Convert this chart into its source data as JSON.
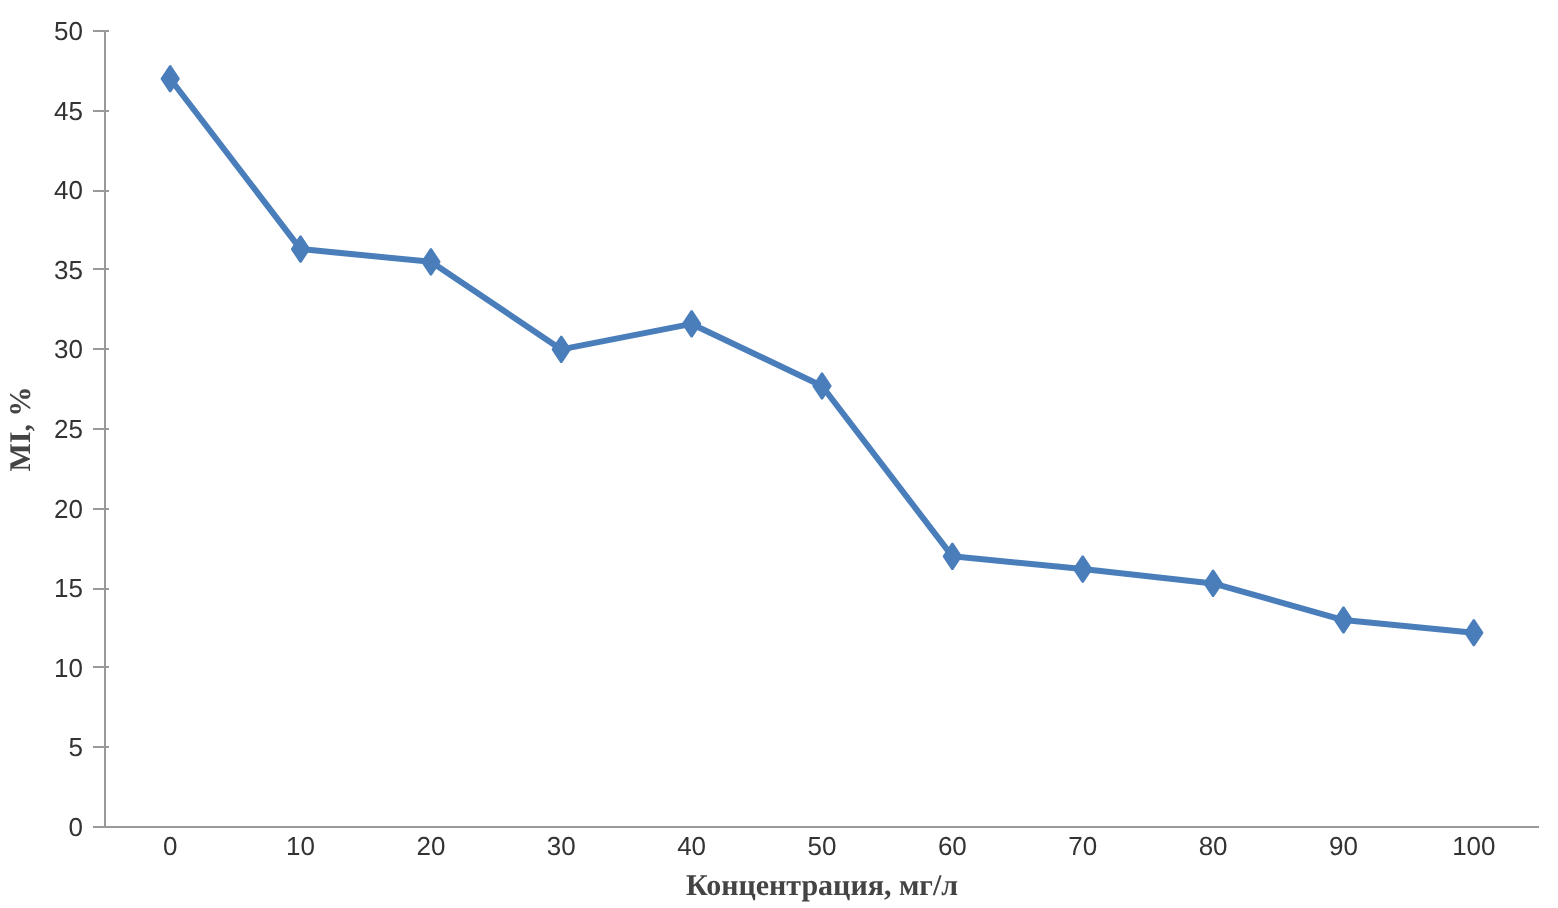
{
  "chart_data": {
    "type": "line",
    "xlabel": "Концентрация, мг/л",
    "ylabel": "MI, %",
    "categories": [
      "0",
      "10",
      "20",
      "30",
      "40",
      "50",
      "60",
      "70",
      "80",
      "90",
      "100"
    ],
    "series": [
      {
        "color": "#4a7ebb",
        "values": [
          47,
          36.3,
          35.5,
          30,
          31.6,
          27.7,
          17,
          16.2,
          15.3,
          13,
          12.2
        ]
      }
    ],
    "ylim": [
      0,
      50
    ],
    "yticks": [
      0,
      5,
      10,
      15,
      20,
      25,
      30,
      35,
      40,
      45,
      50
    ],
    "grid": false,
    "marker": "diamond",
    "line_style": "solid"
  }
}
